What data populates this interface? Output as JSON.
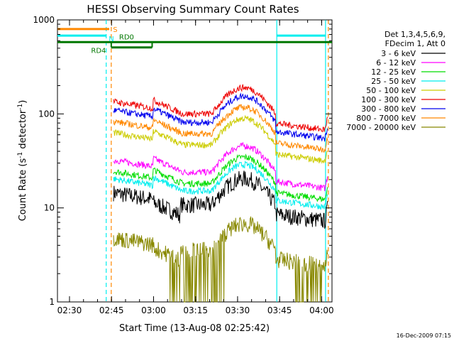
{
  "chart_data": {
    "type": "line",
    "title": "HESSI Observing Summary Count Rates",
    "xlabel": "Start Time (13-Aug-08 02:25:42)",
    "ylabel_main": "Count Rate (s",
    "ylabel_sup1": "-1",
    "ylabel_mid": " detector",
    "ylabel_sup2": "-1",
    "ylabel_end": ")",
    "yscale": "log",
    "ylim": [
      1,
      1000
    ],
    "xlim_minutes": [
      0,
      98
    ],
    "x_ticks": [
      {
        "label": "02:30",
        "minutes": 4.3
      },
      {
        "label": "02:45",
        "minutes": 19.3
      },
      {
        "label": "03:00",
        "minutes": 34.3
      },
      {
        "label": "03:15",
        "minutes": 49.3
      },
      {
        "label": "03:30",
        "minutes": 64.3
      },
      {
        "label": "03:45",
        "minutes": 79.3
      },
      {
        "label": "04:00",
        "minutes": 94.3
      }
    ],
    "y_ticks": [
      {
        "label": "1",
        "value": 1
      },
      {
        "label": "10",
        "value": 10
      },
      {
        "label": "100",
        "value": 100
      },
      {
        "label": "1000",
        "value": 1000
      }
    ],
    "legend_header": [
      "Det 1,3,4,5,6,9,",
      "FDecim 1, Att 0"
    ],
    "series": [
      {
        "name": "3 - 6 keV",
        "color": "#000000",
        "offset": -0.02
      },
      {
        "name": "6 - 12 keV",
        "color": "#ff00ff",
        "offset": 0.33
      },
      {
        "name": "12 - 25 keV",
        "color": "#00dd00",
        "offset": 0.21
      },
      {
        "name": "25 - 50 keV",
        "color": "#00eeee",
        "offset": 0.13
      },
      {
        "name": "50 - 100 keV",
        "color": "#cccc00",
        "offset": 0.62
      },
      {
        "name": "100 - 300 keV",
        "color": "#ee0000",
        "offset": 0.95
      },
      {
        "name": "300 - 800 keV",
        "color": "#0000ee",
        "offset": 0.86
      },
      {
        "name": "800 - 7000 keV",
        "color": "#ff8800",
        "offset": 0.74
      },
      {
        "name": "7000 - 20000 keV",
        "color": "#888800",
        "offset": -0.5
      }
    ],
    "flags": [
      {
        "name": "S",
        "color": "#ff8800",
        "y": 800,
        "x0": 0,
        "x1": 18.5
      },
      {
        "name": "N",
        "color": "#00eeee",
        "y": 680,
        "x0": 0,
        "x1": 17.5,
        "x2": 78.2,
        "x3": 95.8
      },
      {
        "name": "RD0",
        "color": "#007700",
        "y": 580,
        "x0": 0,
        "x1": 98
      },
      {
        "name": "RD4",
        "color": "#007700",
        "y": 510,
        "x0": 19.2,
        "x1": 33.8
      }
    ],
    "vlines": [
      {
        "x": 17.4,
        "color": "#00eeee",
        "dashed": true
      },
      {
        "x": 19.2,
        "color": "#ff8800",
        "dashed": true
      },
      {
        "x": 78.3,
        "color": "#00eeee",
        "dashed": false
      },
      {
        "x": 95.7,
        "color": "#00eeee",
        "dashed": false
      },
      {
        "x": 96.7,
        "color": "#ff8800",
        "dashed": true
      }
    ]
  },
  "footer_date": "16-Dec-2009 07:15"
}
